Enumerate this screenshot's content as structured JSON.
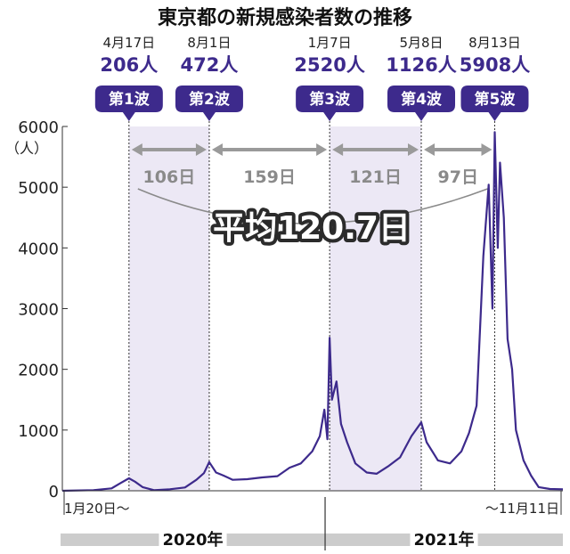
{
  "title": "東京都の新規感染者数の推移",
  "colors": {
    "line": "#3d2a8c",
    "badge": "#3d2a8c",
    "shade": "#ece8f5",
    "interval_arrow": "#9a9a9a",
    "year_bar": "#cccccc"
  },
  "chart_data": {
    "type": "line",
    "title": "東京都の新規感染者数の推移",
    "ylabel": "（人）",
    "ylim": [
      0,
      6000
    ],
    "yticks": [
      0,
      1000,
      2000,
      3000,
      4000,
      5000,
      6000
    ],
    "x_start_label": "1月20日〜",
    "x_end_label": "〜11月11日",
    "years": [
      "2020年",
      "2021年"
    ],
    "series": [
      {
        "values_note": "daily new cases, approximate",
        "points": [
          [
            "2020-01-20",
            0
          ],
          [
            "2020-03-01",
            10
          ],
          [
            "2020-03-25",
            40
          ],
          [
            "2020-04-05",
            120
          ],
          [
            "2020-04-17",
            206
          ],
          [
            "2020-04-25",
            150
          ],
          [
            "2020-05-05",
            60
          ],
          [
            "2020-05-20",
            10
          ],
          [
            "2020-06-10",
            25
          ],
          [
            "2020-06-30",
            55
          ],
          [
            "2020-07-15",
            180
          ],
          [
            "2020-07-25",
            290
          ],
          [
            "2020-08-01",
            472
          ],
          [
            "2020-08-10",
            300
          ],
          [
            "2020-08-20",
            250
          ],
          [
            "2020-09-01",
            180
          ],
          [
            "2020-09-20",
            190
          ],
          [
            "2020-10-10",
            220
          ],
          [
            "2020-10-30",
            240
          ],
          [
            "2020-11-15",
            380
          ],
          [
            "2020-11-30",
            450
          ],
          [
            "2020-12-15",
            650
          ],
          [
            "2020-12-25",
            900
          ],
          [
            "2020-12-31",
            1337
          ],
          [
            "2021-01-04",
            850
          ],
          [
            "2021-01-07",
            2520
          ],
          [
            "2021-01-10",
            1500
          ],
          [
            "2021-01-16",
            1800
          ],
          [
            "2021-01-22",
            1100
          ],
          [
            "2021-01-30",
            800
          ],
          [
            "2021-02-10",
            450
          ],
          [
            "2021-02-25",
            300
          ],
          [
            "2021-03-10",
            280
          ],
          [
            "2021-03-25",
            400
          ],
          [
            "2021-04-10",
            550
          ],
          [
            "2021-04-25",
            900
          ],
          [
            "2021-05-08",
            1126
          ],
          [
            "2021-05-15",
            800
          ],
          [
            "2021-05-30",
            500
          ],
          [
            "2021-06-15",
            450
          ],
          [
            "2021-06-30",
            650
          ],
          [
            "2021-07-10",
            950
          ],
          [
            "2021-07-20",
            1400
          ],
          [
            "2021-07-29",
            3865
          ],
          [
            "2021-08-05",
            5042
          ],
          [
            "2021-08-10",
            3000
          ],
          [
            "2021-08-13",
            5908
          ],
          [
            "2021-08-17",
            4000
          ],
          [
            "2021-08-20",
            5405
          ],
          [
            "2021-08-25",
            4500
          ],
          [
            "2021-08-30",
            2500
          ],
          [
            "2021-09-05",
            2000
          ],
          [
            "2021-09-10",
            1000
          ],
          [
            "2021-09-20",
            500
          ],
          [
            "2021-09-30",
            250
          ],
          [
            "2021-10-10",
            60
          ],
          [
            "2021-10-25",
            30
          ],
          [
            "2021-11-11",
            25
          ]
        ]
      }
    ],
    "waves": [
      {
        "date": "4月17日",
        "x": "2020-04-17",
        "count": "206人",
        "label": "第1波"
      },
      {
        "date": "8月1日",
        "x": "2020-08-01",
        "count": "472人",
        "label": "第2波"
      },
      {
        "date": "1月7日",
        "x": "2021-01-07",
        "count": "2520人",
        "label": "第3波"
      },
      {
        "date": "5月8日",
        "x": "2021-05-08",
        "count": "1126人",
        "label": "第4波"
      },
      {
        "date": "8月13日",
        "x": "2021-08-13",
        "count": "5908人",
        "label": "第5波"
      }
    ],
    "intervals": [
      "106日",
      "159日",
      "121日",
      "97日"
    ],
    "average_label": "平均120.7日"
  }
}
